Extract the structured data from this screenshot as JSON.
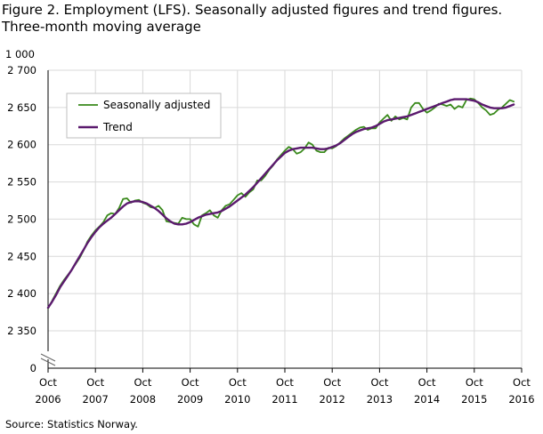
{
  "title_line1": "Figure 2. Employment (LFS). Seasonally adjusted figures and trend figures.",
  "title_line2": "Three-month moving average",
  "unit_label": "1 000",
  "source": "Source: Statistics Norway.",
  "chart_data": {
    "type": "line",
    "y_ticks": [
      0,
      2350,
      2400,
      2450,
      2500,
      2550,
      2600,
      2650,
      2700
    ],
    "y_tick_labels": [
      "0",
      "2 350",
      "2 400",
      "2 450",
      "2 500",
      "2 550",
      "2 600",
      "2 650",
      "2 700"
    ],
    "ylim_broken": [
      2330,
      2700
    ],
    "axis_break": true,
    "grid": true,
    "x_ticks": [
      {
        "month": "Oct",
        "year": "2006"
      },
      {
        "month": "Oct",
        "year": "2007"
      },
      {
        "month": "Oct",
        "year": "2008"
      },
      {
        "month": "Oct",
        "year": "2009"
      },
      {
        "month": "Oct",
        "year": "2010"
      },
      {
        "month": "Oct",
        "year": "2011"
      },
      {
        "month": "Oct",
        "year": "2012"
      },
      {
        "month": "Oct",
        "year": "2013"
      },
      {
        "month": "Oct",
        "year": "2014"
      },
      {
        "month": "Oct",
        "year": "2015"
      },
      {
        "month": "Oct",
        "year": "2016"
      }
    ],
    "x_start": "2006-10",
    "legend_position": "top-left",
    "series": [
      {
        "name": "Seasonally adjusted",
        "color": "#3a8a1c",
        "values": [
          2380,
          2390,
          2400,
          2410,
          2418,
          2425,
          2432,
          2440,
          2448,
          2458,
          2470,
          2478,
          2485,
          2490,
          2496,
          2505,
          2508,
          2507,
          2515,
          2527,
          2528,
          2522,
          2525,
          2526,
          2522,
          2520,
          2516,
          2515,
          2518,
          2512,
          2497,
          2496,
          2495,
          2494,
          2502,
          2500,
          2500,
          2493,
          2490,
          2505,
          2508,
          2512,
          2505,
          2502,
          2512,
          2518,
          2520,
          2526,
          2532,
          2535,
          2530,
          2536,
          2540,
          2552,
          2552,
          2558,
          2566,
          2572,
          2580,
          2586,
          2592,
          2597,
          2594,
          2588,
          2590,
          2595,
          2603,
          2600,
          2592,
          2590,
          2590,
          2596,
          2595,
          2598,
          2603,
          2608,
          2612,
          2616,
          2620,
          2623,
          2624,
          2620,
          2622,
          2622,
          2630,
          2635,
          2640,
          2632,
          2638,
          2634,
          2636,
          2634,
          2650,
          2656,
          2656,
          2648,
          2643,
          2646,
          2650,
          2655,
          2654,
          2652,
          2654,
          2648,
          2652,
          2650,
          2660,
          2662,
          2661,
          2656,
          2650,
          2646,
          2640,
          2642,
          2647,
          2650,
          2655,
          2660,
          2658
        ]
      },
      {
        "name": "Trend",
        "color": "#5b1a6e",
        "values": [
          2381,
          2389,
          2398,
          2408,
          2416,
          2424,
          2432,
          2441,
          2450,
          2459,
          2468,
          2476,
          2483,
          2489,
          2494,
          2498,
          2502,
          2507,
          2512,
          2517,
          2521,
          2523,
          2524,
          2524,
          2523,
          2521,
          2518,
          2515,
          2511,
          2506,
          2501,
          2497,
          2494,
          2493,
          2493,
          2494,
          2496,
          2499,
          2502,
          2504,
          2506,
          2507,
          2508,
          2509,
          2511,
          2514,
          2517,
          2521,
          2525,
          2529,
          2533,
          2538,
          2543,
          2549,
          2555,
          2561,
          2567,
          2573,
          2579,
          2584,
          2589,
          2592,
          2594,
          2595,
          2596,
          2596,
          2596,
          2596,
          2595,
          2594,
          2594,
          2595,
          2597,
          2599,
          2602,
          2606,
          2610,
          2614,
          2617,
          2619,
          2621,
          2622,
          2623,
          2625,
          2628,
          2631,
          2633,
          2634,
          2635,
          2636,
          2637,
          2638,
          2640,
          2642,
          2644,
          2646,
          2648,
          2650,
          2652,
          2654,
          2656,
          2658,
          2660,
          2661,
          2661,
          2661,
          2661,
          2660,
          2659,
          2657,
          2654,
          2652,
          2650,
          2649,
          2649,
          2649,
          2650,
          2652,
          2654
        ]
      }
    ]
  }
}
